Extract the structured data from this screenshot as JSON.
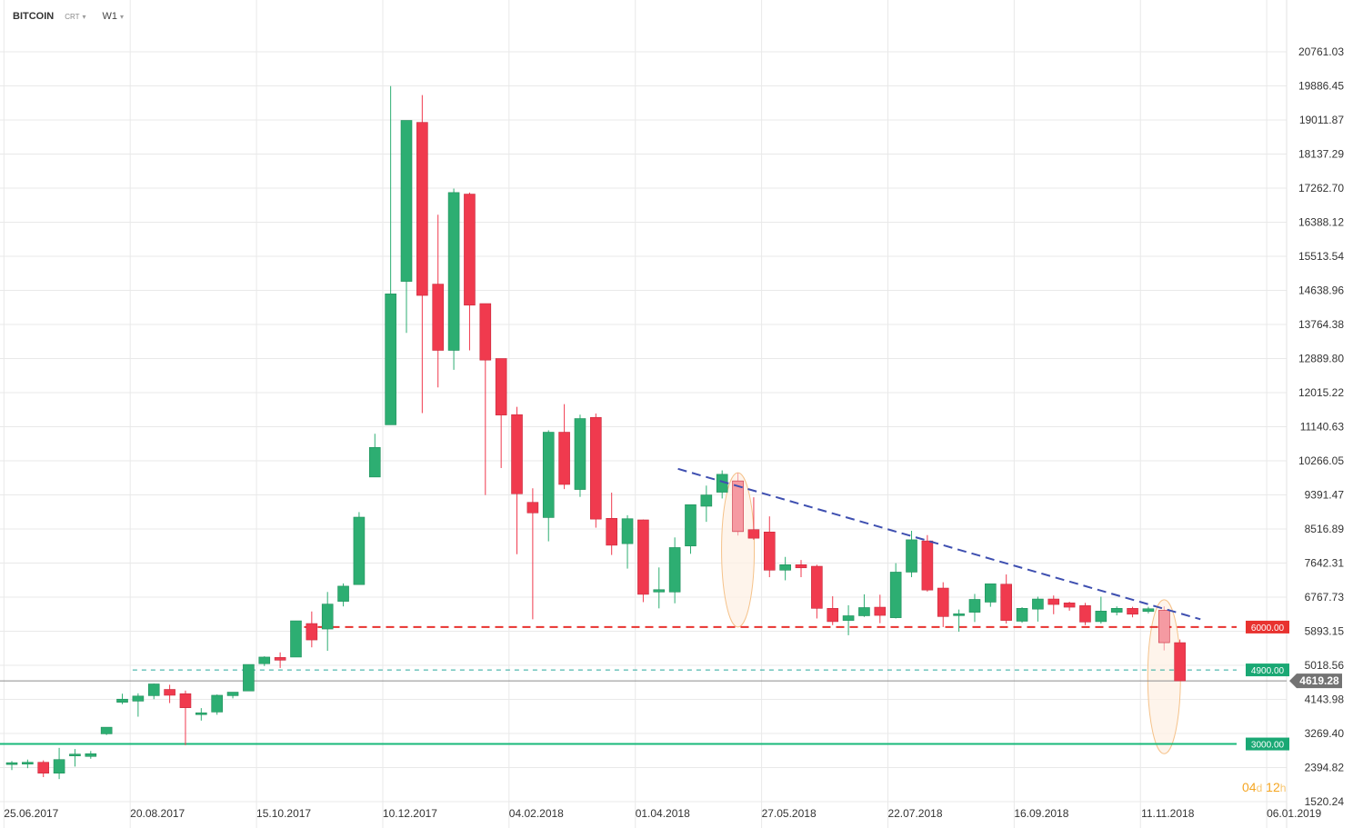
{
  "toolbar": {
    "symbol": "BITCOIN",
    "type": "CRT",
    "interval": "W1"
  },
  "timer": {
    "days": "04",
    "days_unit": "d",
    "hours": "12",
    "hours_unit": "h"
  },
  "colors": {
    "up": "#2dae72",
    "down": "#f03a4e",
    "trendline": "#3e4fb0",
    "support_red": "#e8322f",
    "support_teal": "#26a69a",
    "support_green": "#18b97a",
    "highlight": "#f5c28a",
    "grid": "#e9e9e9"
  },
  "chart_data": {
    "type": "candlestick",
    "y_axis": {
      "ticks": [
        20761.03,
        19886.45,
        19011.87,
        18137.29,
        17262.7,
        16388.12,
        15513.54,
        14638.96,
        13764.38,
        12889.8,
        12015.22,
        11140.63,
        10266.05,
        9391.47,
        8516.89,
        7642.31,
        6767.73,
        5893.15,
        5018.56,
        4143.98,
        3269.4,
        2394.82,
        1520.24
      ],
      "tick_labels": [
        "20761.03",
        "19886.45",
        "19011.87",
        "18137.29",
        "17262.70",
        "16388.12",
        "15513.54",
        "14638.96",
        "13764.38",
        "12889.80",
        "12015.22",
        "11140.63",
        "10266.05",
        "9391.47",
        "8516.89",
        "7642.31",
        "6767.73",
        "5893.15",
        "5018.56",
        "4143.98",
        "3269.40",
        "2394.82",
        "1520.24"
      ]
    },
    "x_axis": {
      "tick_labels": [
        "25.06.2017",
        "20.08.2017",
        "15.10.2017",
        "10.12.2017",
        "04.02.2018",
        "01.04.2018",
        "27.05.2018",
        "22.07.2018",
        "16.09.2018",
        "11.11.2018",
        "06.01.2019"
      ],
      "tick_index": [
        0,
        8,
        16,
        24,
        32,
        40,
        48,
        56,
        64,
        72,
        80
      ]
    },
    "grid": true,
    "candles": [
      {
        "o": 2480,
        "h": 2560,
        "l": 2330,
        "c": 2520
      },
      {
        "o": 2500,
        "h": 2600,
        "l": 2380,
        "c": 2530
      },
      {
        "o": 2530,
        "h": 2580,
        "l": 2150,
        "c": 2250
      },
      {
        "o": 2250,
        "h": 2900,
        "l": 2100,
        "c": 2600
      },
      {
        "o": 2730,
        "h": 2870,
        "l": 2420,
        "c": 2740
      },
      {
        "o": 2680,
        "h": 2820,
        "l": 2620,
        "c": 2750
      },
      {
        "o": 3260,
        "h": 3350,
        "l": 3230,
        "c": 3430
      },
      {
        "o": 4070,
        "h": 4290,
        "l": 4020,
        "c": 4150
      },
      {
        "o": 4100,
        "h": 4300,
        "l": 3700,
        "c": 4230
      },
      {
        "o": 4240,
        "h": 4550,
        "l": 4150,
        "c": 4540
      },
      {
        "o": 4400,
        "h": 4520,
        "l": 4050,
        "c": 4250
      },
      {
        "o": 4290,
        "h": 4370,
        "l": 2970,
        "c": 3930
      },
      {
        "o": 3790,
        "h": 3920,
        "l": 3600,
        "c": 3800
      },
      {
        "o": 3820,
        "h": 4270,
        "l": 3750,
        "c": 4250
      },
      {
        "o": 4240,
        "h": 4320,
        "l": 4170,
        "c": 4330
      },
      {
        "o": 4360,
        "h": 5040,
        "l": 4360,
        "c": 5040
      },
      {
        "o": 5060,
        "h": 5250,
        "l": 5000,
        "c": 5230
      },
      {
        "o": 5220,
        "h": 5350,
        "l": 4950,
        "c": 5150
      },
      {
        "o": 5230,
        "h": 6160,
        "l": 5230,
        "c": 6160
      },
      {
        "o": 6090,
        "h": 6400,
        "l": 5480,
        "c": 5670
      },
      {
        "o": 5950,
        "h": 6900,
        "l": 5390,
        "c": 6590
      },
      {
        "o": 6660,
        "h": 7120,
        "l": 6530,
        "c": 7050
      },
      {
        "o": 7090,
        "h": 8950,
        "l": 7090,
        "c": 8820
      },
      {
        "o": 9850,
        "h": 10960,
        "l": 9850,
        "c": 10610
      },
      {
        "o": 11190,
        "h": 19880,
        "l": 11190,
        "c": 14550
      },
      {
        "o": 14870,
        "h": 19000,
        "l": 13550,
        "c": 19000
      },
      {
        "o": 18950,
        "h": 19650,
        "l": 11490,
        "c": 14510
      },
      {
        "o": 14800,
        "h": 16580,
        "l": 12150,
        "c": 13100
      },
      {
        "o": 13100,
        "h": 17250,
        "l": 12600,
        "c": 17150
      },
      {
        "o": 17110,
        "h": 17150,
        "l": 13100,
        "c": 14260
      },
      {
        "o": 14300,
        "h": 14300,
        "l": 9390,
        "c": 12850
      },
      {
        "o": 12890,
        "h": 12890,
        "l": 10080,
        "c": 11440
      },
      {
        "o": 11450,
        "h": 11650,
        "l": 7870,
        "c": 9420
      },
      {
        "o": 9200,
        "h": 9560,
        "l": 6200,
        "c": 8930
      },
      {
        "o": 8810,
        "h": 11050,
        "l": 8200,
        "c": 11000
      },
      {
        "o": 11000,
        "h": 11720,
        "l": 9540,
        "c": 9660
      },
      {
        "o": 9530,
        "h": 11450,
        "l": 9340,
        "c": 11350
      },
      {
        "o": 11380,
        "h": 11480,
        "l": 8550,
        "c": 8770
      },
      {
        "o": 8790,
        "h": 9450,
        "l": 7850,
        "c": 8100
      },
      {
        "o": 8140,
        "h": 8870,
        "l": 7500,
        "c": 8780
      },
      {
        "o": 8750,
        "h": 8760,
        "l": 6640,
        "c": 6840
      },
      {
        "o": 6900,
        "h": 7530,
        "l": 6480,
        "c": 6960
      },
      {
        "o": 6900,
        "h": 8300,
        "l": 6610,
        "c": 8040
      },
      {
        "o": 8080,
        "h": 9010,
        "l": 7880,
        "c": 9140
      },
      {
        "o": 9100,
        "h": 9630,
        "l": 8700,
        "c": 9390
      },
      {
        "o": 9460,
        "h": 10020,
        "l": 9300,
        "c": 9920
      },
      {
        "o": 9750,
        "h": 9960,
        "l": 8350,
        "c": 8450
      },
      {
        "o": 8500,
        "h": 9330,
        "l": 8240,
        "c": 8280
      },
      {
        "o": 8440,
        "h": 8840,
        "l": 7280,
        "c": 7460
      },
      {
        "o": 7460,
        "h": 7800,
        "l": 7200,
        "c": 7600
      },
      {
        "o": 7600,
        "h": 7720,
        "l": 7280,
        "c": 7520
      },
      {
        "o": 7560,
        "h": 7600,
        "l": 6220,
        "c": 6480
      },
      {
        "o": 6480,
        "h": 6790,
        "l": 6050,
        "c": 6140
      },
      {
        "o": 6170,
        "h": 6560,
        "l": 5790,
        "c": 6290
      },
      {
        "o": 6290,
        "h": 6840,
        "l": 6260,
        "c": 6500
      },
      {
        "o": 6510,
        "h": 6830,
        "l": 6100,
        "c": 6300
      },
      {
        "o": 6240,
        "h": 7640,
        "l": 6220,
        "c": 7410
      },
      {
        "o": 7410,
        "h": 8470,
        "l": 7280,
        "c": 8240
      },
      {
        "o": 8210,
        "h": 8360,
        "l": 6910,
        "c": 6950
      },
      {
        "o": 7000,
        "h": 7150,
        "l": 6000,
        "c": 6270
      },
      {
        "o": 6300,
        "h": 6450,
        "l": 5880,
        "c": 6340
      },
      {
        "o": 6380,
        "h": 6850,
        "l": 6130,
        "c": 6710
      },
      {
        "o": 6640,
        "h": 7020,
        "l": 6520,
        "c": 7110
      },
      {
        "o": 7100,
        "h": 7350,
        "l": 6090,
        "c": 6170
      },
      {
        "o": 6150,
        "h": 6510,
        "l": 6110,
        "c": 6480
      },
      {
        "o": 6460,
        "h": 6780,
        "l": 6140,
        "c": 6720
      },
      {
        "o": 6720,
        "h": 6810,
        "l": 6330,
        "c": 6580
      },
      {
        "o": 6620,
        "h": 6650,
        "l": 6420,
        "c": 6510
      },
      {
        "o": 6550,
        "h": 6620,
        "l": 6050,
        "c": 6130
      },
      {
        "o": 6140,
        "h": 6780,
        "l": 6090,
        "c": 6410
      },
      {
        "o": 6380,
        "h": 6530,
        "l": 6300,
        "c": 6480
      },
      {
        "o": 6480,
        "h": 6520,
        "l": 6250,
        "c": 6330
      },
      {
        "o": 6400,
        "h": 6520,
        "l": 6350,
        "c": 6470
      },
      {
        "o": 6430,
        "h": 6530,
        "l": 5400,
        "c": 5600
      },
      {
        "o": 5600,
        "h": 5680,
        "l": 4620,
        "c": 4619.28
      }
    ],
    "annotations": {
      "trendline": {
        "from_index": 42.2,
        "from_price": 10060,
        "to_index": 75.3,
        "to_price": 6200
      },
      "highlights": [
        {
          "index": 46,
          "top": 9960,
          "bottom": 6000
        },
        {
          "index": 73,
          "top": 6700,
          "bottom": 2750
        }
      ],
      "levels": [
        {
          "price": 6000,
          "label": "6000.00",
          "style": "dashed",
          "color": "#e8322f"
        },
        {
          "price": 4900,
          "label": "4900.00",
          "style": "dashed",
          "color": "#26a69a"
        },
        {
          "price": 3000,
          "label": "3000.00",
          "style": "solid",
          "color": "#18b97a"
        }
      ],
      "current_price": {
        "price": 4619.28,
        "label": "4619.28"
      }
    }
  }
}
